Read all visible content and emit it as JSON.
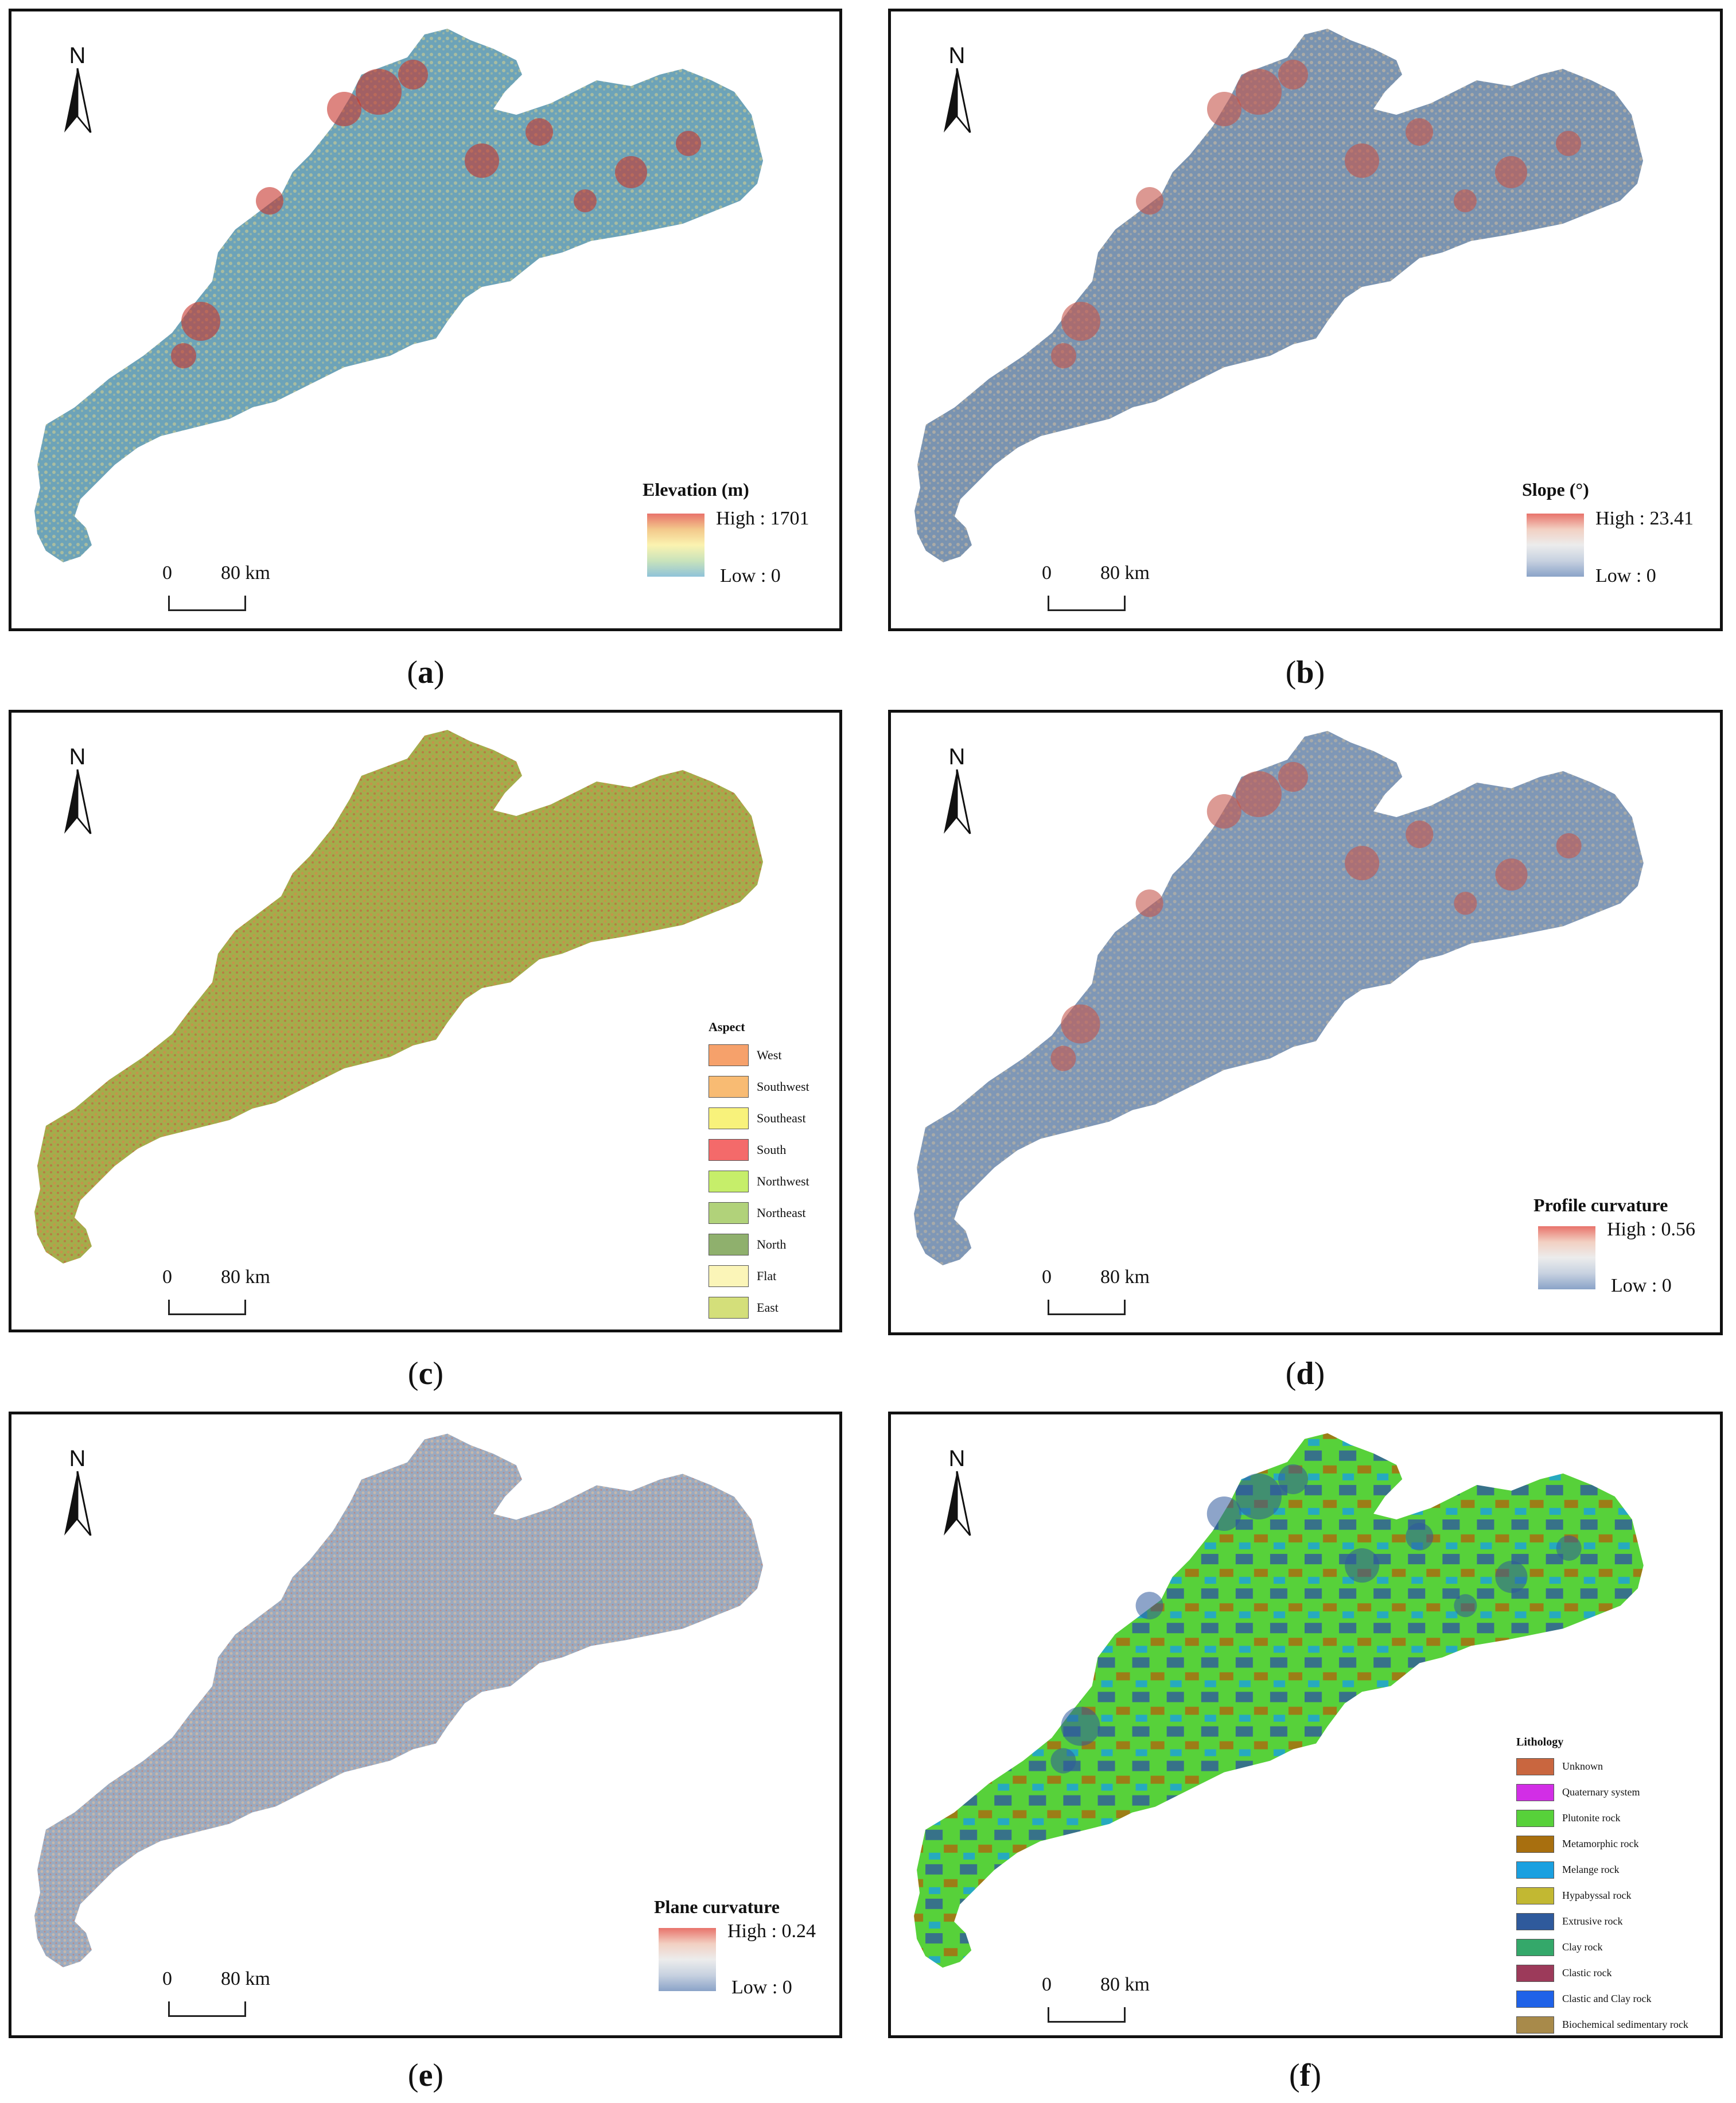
{
  "north_label": "N",
  "scale": {
    "zero": "0",
    "dist": "80 km"
  },
  "panels": {
    "a": {
      "caption": "a",
      "legend": {
        "title": "Elevation (m)",
        "high": "High : 1701",
        "low": "Low : 0",
        "ramp": [
          "#e8736b",
          "#f3c88b",
          "#fbf3b0",
          "#c9e3bb",
          "#8fc3d9"
        ]
      },
      "map_colors": {
        "base": "#6da3b8",
        "mid": "#d8cf8c",
        "high": "#c7332c"
      }
    },
    "b": {
      "caption": "b",
      "legend": {
        "title": "Slope (°)",
        "high": "High : 23.41",
        "low": "Low : 0",
        "ramp": [
          "#e8736b",
          "#f2d0c2",
          "#ececec",
          "#c7d1e0",
          "#8aa3c8"
        ]
      },
      "map_colors": {
        "base": "#7a93b0",
        "mid": "#c9b9a0",
        "high": "#c4534a"
      }
    },
    "c": {
      "caption": "c",
      "legend": {
        "title": "Aspect",
        "items": [
          {
            "label": "West",
            "color": "#f6a16b"
          },
          {
            "label": "Southwest",
            "color": "#f8bb73"
          },
          {
            "label": "Southeast",
            "color": "#f8f27b"
          },
          {
            "label": "South",
            "color": "#f46a6a"
          },
          {
            "label": "Northwest",
            "color": "#c6ee6a"
          },
          {
            "label": "Northeast",
            "color": "#b1d27a"
          },
          {
            "label": "North",
            "color": "#8fb06d"
          },
          {
            "label": "Flat",
            "color": "#fbf5b8"
          },
          {
            "label": "East",
            "color": "#d4df7a"
          }
        ]
      },
      "map_colors": {
        "base": "#a3ad4b",
        "mid": "#d08a4b",
        "high": "#c85a3e"
      }
    },
    "d": {
      "caption": "d",
      "legend": {
        "title": "Profile curvature",
        "high": "High : 0.56",
        "low": "Low : 0",
        "ramp": [
          "#e8736b",
          "#f2d0c2",
          "#ececec",
          "#c7d1e0",
          "#8aa3c8"
        ]
      },
      "map_colors": {
        "base": "#7f97b6",
        "mid": "#c8b99e",
        "high": "#c4564c"
      }
    },
    "e": {
      "caption": "e",
      "legend": {
        "title": "Plane curvature",
        "high": "High : 0.24",
        "low": "Low : 0",
        "ramp": [
          "#e8736b",
          "#f2d0c2",
          "#ececec",
          "#c7d1e0",
          "#8aa3c8"
        ]
      },
      "map_colors": {
        "base": "#9aaac0",
        "mid": "#d2b9a4",
        "high": "#cf7a63"
      }
    },
    "f": {
      "caption": "f",
      "legend": {
        "title": "Lithology",
        "items": [
          {
            "label": "Unknown",
            "color": "#c9663f"
          },
          {
            "label": "Quaternary system",
            "color": "#d22ee6"
          },
          {
            "label": "Plutonite rock",
            "color": "#57d13a"
          },
          {
            "label": "Metamorphic rock",
            "color": "#a86f0f"
          },
          {
            "label": "Melange rock",
            "color": "#1aa0e0"
          },
          {
            "label": "Hypabyssal rock",
            "color": "#c2b832"
          },
          {
            "label": "Extrusive rock",
            "color": "#2f5a9c"
          },
          {
            "label": "Clay rock",
            "color": "#34a86a"
          },
          {
            "label": "Clastic rock",
            "color": "#9c3a5a"
          },
          {
            "label": "Clastic and Clay rock",
            "color": "#1f62e8"
          },
          {
            "label": "Biochemical sedimentary rock",
            "color": "#a88a4a"
          }
        ]
      },
      "map_colors": {
        "base": "#57d13a",
        "mid": "#d22ee6",
        "high": "#2f5a9c"
      }
    }
  }
}
